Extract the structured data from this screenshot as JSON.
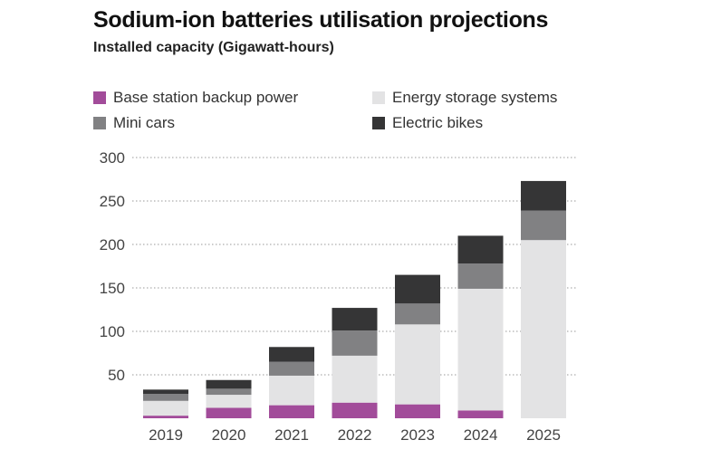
{
  "chart_data": {
    "type": "bar",
    "stacked": true,
    "title": "Sodium-ion batteries utilisation projections",
    "subtitle": "Installed capacity (Gigawatt-hours)",
    "xlabel": "",
    "ylabel": "",
    "ylim": [
      0,
      300
    ],
    "yticks": [
      50,
      100,
      150,
      200,
      250,
      300
    ],
    "grid": true,
    "legend_position": "top",
    "categories": [
      "2019",
      "2020",
      "2021",
      "2022",
      "2023",
      "2024",
      "2025"
    ],
    "series": [
      {
        "name": "Base station backup power",
        "color": "#a24c9a",
        "values": [
          3,
          12,
          15,
          18,
          16,
          9,
          0
        ]
      },
      {
        "name": "Energy storage systems",
        "color": "#e3e3e4",
        "values": [
          17,
          15,
          34,
          54,
          92,
          140,
          205
        ]
      },
      {
        "name": "Mini cars",
        "color": "#818183",
        "values": [
          8,
          7,
          16,
          29,
          24,
          29,
          34
        ]
      },
      {
        "name": "Electric bikes",
        "color": "#353536",
        "values": [
          5,
          10,
          17,
          26,
          33,
          32,
          34
        ]
      }
    ]
  }
}
